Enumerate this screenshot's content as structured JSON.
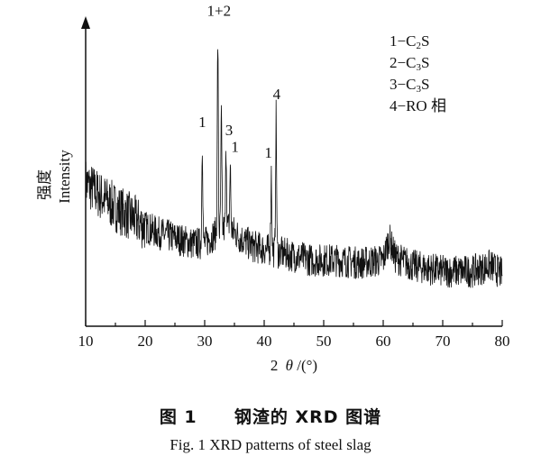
{
  "chart_data": {
    "type": "line",
    "title": "",
    "xlabel_prefix": "2",
    "xlabel_theta": "θ",
    "xlabel_suffix": "/(°)",
    "ylabel_cn": "强度",
    "ylabel_en": "Intensity",
    "xlim": [
      10,
      80
    ],
    "xticks": [
      10,
      20,
      30,
      40,
      50,
      60,
      70,
      80
    ],
    "ylim": [
      0,
      100
    ],
    "y_axis_ticks": false,
    "grid": false,
    "legend_position": "top-right",
    "legend": [
      {
        "index": "1",
        "label": "C2S",
        "main": "1−C",
        "sub": "2",
        "tail": "S"
      },
      {
        "index": "2",
        "label": "C3S",
        "main": "2−C",
        "sub": "3",
        "tail": "S"
      },
      {
        "index": "3",
        "label": "C3S",
        "main": "3−C",
        "sub": "3",
        "tail": "S"
      },
      {
        "index": "4",
        "label": "RO 相",
        "main": "4−RO 相",
        "sub": "",
        "tail": ""
      }
    ],
    "peaks": [
      {
        "x": 29.6,
        "y": 59,
        "label": "1"
      },
      {
        "x": 32.2,
        "y": 95,
        "label": "1+2"
      },
      {
        "x": 32.8,
        "y": 68,
        "label": ""
      },
      {
        "x": 33.6,
        "y": 56,
        "label": "3"
      },
      {
        "x": 34.3,
        "y": 50,
        "label": "1"
      },
      {
        "x": 41.2,
        "y": 48,
        "label": "1"
      },
      {
        "x": 42.0,
        "y": 68,
        "label": "4"
      }
    ],
    "peak_label_x": [
      {
        "x": 29.6,
        "y": 64,
        "label": "1"
      },
      {
        "x": 32.4,
        "y": 104,
        "label": "1+2"
      },
      {
        "x": 34.1,
        "y": 61,
        "label": "3"
      },
      {
        "x": 35.1,
        "y": 55,
        "label": "1"
      },
      {
        "x": 40.7,
        "y": 53,
        "label": "1"
      },
      {
        "x": 42.1,
        "y": 74,
        "label": "4"
      }
    ],
    "baseline": [
      {
        "x": 10,
        "y": 44
      },
      {
        "x": 12,
        "y": 40
      },
      {
        "x": 15,
        "y": 35
      },
      {
        "x": 18,
        "y": 31
      },
      {
        "x": 20,
        "y": 28
      },
      {
        "x": 22,
        "y": 26
      },
      {
        "x": 25,
        "y": 24
      },
      {
        "x": 28,
        "y": 22
      },
      {
        "x": 30,
        "y": 22
      },
      {
        "x": 32,
        "y": 26
      },
      {
        "x": 34,
        "y": 28
      },
      {
        "x": 36,
        "y": 24
      },
      {
        "x": 38,
        "y": 21
      },
      {
        "x": 40,
        "y": 20
      },
      {
        "x": 44,
        "y": 18
      },
      {
        "x": 48,
        "y": 16
      },
      {
        "x": 52,
        "y": 16
      },
      {
        "x": 56,
        "y": 15
      },
      {
        "x": 60,
        "y": 16
      },
      {
        "x": 61,
        "y": 24
      },
      {
        "x": 62,
        "y": 17
      },
      {
        "x": 65,
        "y": 14
      },
      {
        "x": 70,
        "y": 12
      },
      {
        "x": 75,
        "y": 12
      },
      {
        "x": 78,
        "y": 14
      },
      {
        "x": 80,
        "y": 11
      }
    ],
    "noise_amplitude": 6
  },
  "caption": {
    "cn_figure": "图 1",
    "cn_title": "钢渣的 XRD 图谱",
    "en": "Fig. 1 XRD patterns of steel slag"
  }
}
